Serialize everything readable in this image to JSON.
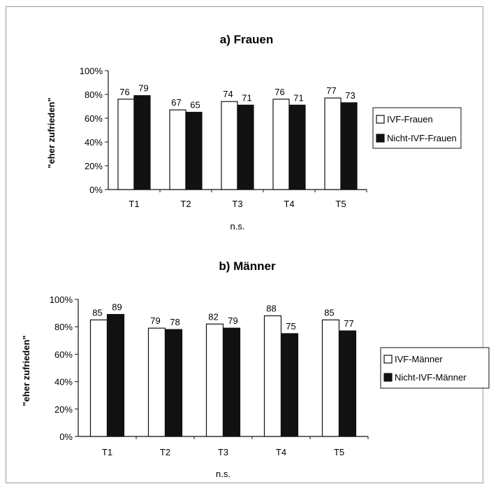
{
  "chart_data": [
    {
      "type": "bar",
      "title": "a) Frauen",
      "ylabel": "\"eher zufrieden\"",
      "xlabel": "n.s.",
      "categories": [
        "T1",
        "T2",
        "T3",
        "T4",
        "T5"
      ],
      "y_ticks": [
        "0%",
        "20%",
        "40%",
        "60%",
        "80%",
        "100%"
      ],
      "ylim": [
        0,
        100
      ],
      "series": [
        {
          "name": "IVF-Frauen",
          "values": [
            76,
            67,
            74,
            76,
            77
          ],
          "color": "#ffffff"
        },
        {
          "name": "Nicht-IVF-Frauen",
          "values": [
            79,
            65,
            71,
            71,
            73
          ],
          "color": "#111111"
        }
      ],
      "legend": "right"
    },
    {
      "type": "bar",
      "title": "b) Männer",
      "ylabel": "\"eher zufrieden\"",
      "xlabel": "n.s.",
      "categories": [
        "T1",
        "T2",
        "T3",
        "T4",
        "T5"
      ],
      "y_ticks": [
        "0%",
        "20%",
        "40%",
        "60%",
        "80%",
        "100%"
      ],
      "ylim": [
        0,
        100
      ],
      "series": [
        {
          "name": "IVF-Männer",
          "values": [
            85,
            79,
            82,
            88,
            85
          ],
          "color": "#ffffff"
        },
        {
          "name": "Nicht-IVF-Männer",
          "values": [
            89,
            78,
            79,
            75,
            77
          ],
          "color": "#111111"
        }
      ],
      "legend": "right"
    }
  ]
}
